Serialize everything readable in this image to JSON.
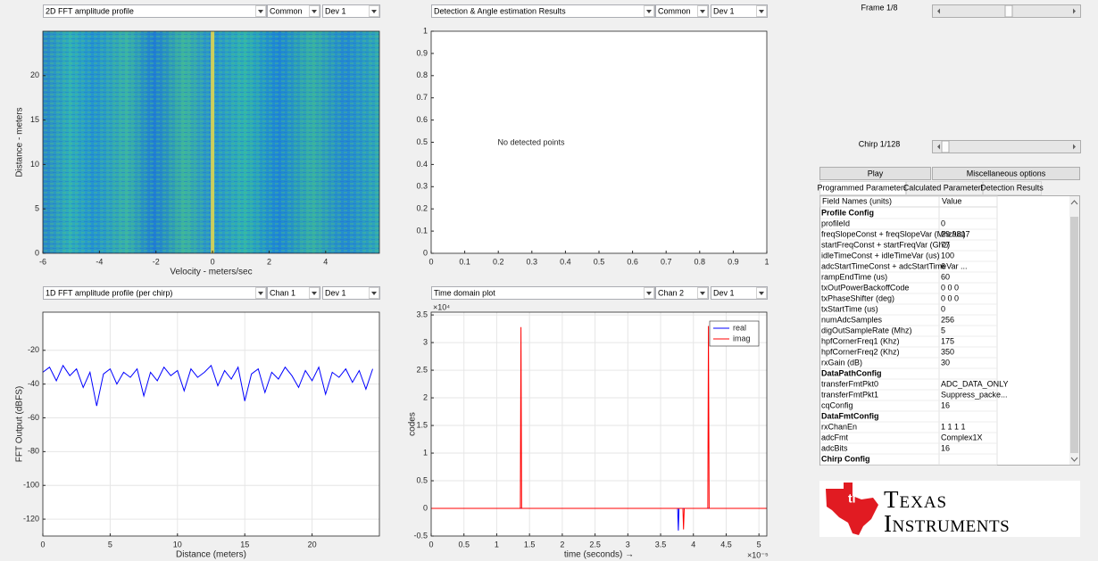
{
  "dropdowns": [
    [
      "2D FFT amplitude profile",
      "Common",
      "Dev 1"
    ],
    [
      "Detection & Angle estimation Results",
      "Common",
      "Dev 1"
    ],
    [
      "1D FFT amplitude profile (per chirp)",
      "Chan 1",
      "Dev 1"
    ],
    [
      "Time domain plot",
      "Chan 2",
      "Dev 1"
    ]
  ],
  "chart_data": [
    {
      "type": "heatmap",
      "xlabel": "Velocity - meters/sec",
      "ylabel": "Distance - meters",
      "xlim": [
        -6,
        5.9
      ],
      "ylim": [
        0,
        25
      ],
      "xticks": [
        -6,
        -4,
        -2,
        0,
        2,
        4
      ],
      "yticks": [
        0,
        5,
        10,
        15,
        20
      ],
      "grid": false
    },
    {
      "type": "scatter",
      "annotation": "No detected points",
      "xlim": [
        0,
        1
      ],
      "ylim": [
        0,
        1
      ],
      "xticks": [
        0,
        0.1,
        0.2,
        0.3,
        0.4,
        0.5,
        0.6,
        0.7,
        0.8,
        0.9,
        1
      ],
      "yticks": [
        0,
        0.1,
        0.2,
        0.3,
        0.4,
        0.5,
        0.6,
        0.7,
        0.8,
        0.9,
        1
      ],
      "grid": false
    },
    {
      "type": "line",
      "xlabel": "Distance (meters)",
      "ylabel": "FFT Output (dBFS)",
      "xlim": [
        0,
        25
      ],
      "ylim": [
        -130,
        2.6
      ],
      "xticks": [
        0,
        5,
        10,
        15,
        20
      ],
      "yticks": [
        -120,
        -100,
        -80,
        -60,
        -40,
        -20
      ],
      "grid": true,
      "series": [
        {
          "name": null,
          "color": "#0000ff",
          "x": [
            0,
            0.5,
            1,
            1.5,
            2,
            2.5,
            3,
            3.5,
            4,
            4.5,
            5,
            5.5,
            6,
            6.5,
            7,
            7.5,
            8,
            8.5,
            9,
            9.5,
            10,
            10.5,
            11,
            11.5,
            12,
            12.5,
            13,
            13.5,
            14,
            14.5,
            15,
            15.5,
            16,
            16.5,
            17,
            17.5,
            18,
            18.5,
            19,
            19.5,
            20,
            20.5,
            21,
            21.5,
            22,
            22.5,
            23,
            23.5,
            24,
            24.5
          ],
          "values": [
            -33,
            -30,
            -38,
            -29,
            -35,
            -31,
            -42,
            -33,
            -53,
            -34,
            -31,
            -40,
            -33,
            -36,
            -31,
            -47,
            -33,
            -38,
            -30,
            -35,
            -32,
            -44,
            -31,
            -36,
            -33,
            -29,
            -41,
            -32,
            -37,
            -30,
            -50,
            -34,
            -31,
            -45,
            -33,
            -37,
            -30,
            -35,
            -42,
            -32,
            -38,
            -30,
            -46,
            -33,
            -36,
            -31,
            -39,
            -32,
            -43,
            -31
          ]
        }
      ]
    },
    {
      "type": "line",
      "xlabel": "time (seconds) →",
      "ylabel": "codes",
      "x_multiplier": "×10⁻⁵",
      "y_multiplier": "×10⁴",
      "xlim": [
        0,
        5.12
      ],
      "ylim": [
        -0.5,
        3.55
      ],
      "xticks": [
        0,
        0.5,
        1,
        1.5,
        2,
        2.5,
        3,
        3.5,
        4,
        4.5,
        5
      ],
      "yticks": [
        -0.5,
        0,
        0.5,
        1,
        1.5,
        2,
        2.5,
        3,
        3.5
      ],
      "grid": true,
      "legend": "upper right",
      "series": [
        {
          "name": "real",
          "color": "#0000ff",
          "x": [
            0,
            3.76,
            3.77,
            3.78,
            5.12
          ],
          "values": [
            0,
            0,
            -0.4,
            0,
            0
          ]
        },
        {
          "name": "imag",
          "color": "#ff0000",
          "x": [
            0,
            1.36,
            1.37,
            1.38,
            3.84,
            3.85,
            3.86,
            4.22,
            4.23,
            4.24,
            5.12
          ],
          "values": [
            0,
            0,
            3.28,
            0,
            0,
            -0.38,
            0,
            0,
            3.3,
            0,
            0
          ]
        }
      ]
    }
  ],
  "controls": {
    "frame_label": "Frame 1/8",
    "chirp_label": "Chirp 1/128",
    "buttons": [
      "Play",
      "Miscellaneous options"
    ],
    "tabs": [
      "Programmed Parameters",
      "Calculated Parameters",
      "Detection Results"
    ],
    "table": {
      "header": [
        "Field Names    (units)",
        "Value"
      ],
      "rows": [
        [
          "Profile Config"
        ],
        [
          "profileId",
          "0"
        ],
        [
          "freqSlopeConst + freqSlopeVar (Mhz/us)",
          "29.9817"
        ],
        [
          "startFreqConst + startFreqVar (Ghz)",
          "77"
        ],
        [
          "idleTimeConst + idleTimeVar (us)",
          "100"
        ],
        [
          "adcStartTimeConst + adcStartTimeVar ...",
          "6"
        ],
        [
          "rampEndTime (us)",
          "60"
        ],
        [
          "txOutPowerBackoffCode",
          "0 0 0"
        ],
        [
          "txPhaseShifter (deg)",
          "0 0 0"
        ],
        [
          "txStartTime (us)",
          "0"
        ],
        [
          "numAdcSamples",
          "256"
        ],
        [
          "digOutSampleRate (Mhz)",
          "5"
        ],
        [
          "hpfCornerFreq1 (Khz)",
          "175"
        ],
        [
          "hpfCornerFreq2 (Khz)",
          "350"
        ],
        [
          "rxGain (dB)",
          "30"
        ],
        [
          "DataPathConfig"
        ],
        [
          "transferFmtPkt0",
          "ADC_DATA_ONLY"
        ],
        [
          "transferFmtPkt1",
          "Suppress_packe..."
        ],
        [
          "cqConfig",
          "16"
        ],
        [
          "DataFmtConfig"
        ],
        [
          "rxChanEn",
          "1 1 1 1"
        ],
        [
          "adcFmt",
          "Complex1X"
        ],
        [
          "adcBits",
          "16"
        ],
        [
          "Chirp Config"
        ]
      ]
    },
    "logo": [
      "Texas",
      "Instruments"
    ]
  }
}
